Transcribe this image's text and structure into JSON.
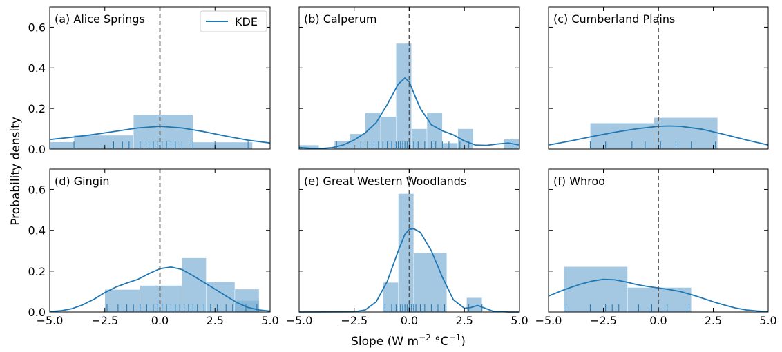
{
  "figure": {
    "xlabel": "Slope (W m",
    "xlabel_sup1": "−2",
    "xlabel_mid": " °C",
    "xlabel_sup2": "−1",
    "xlabel_end": ")",
    "ylabel": "Probability density",
    "legend_label": "KDE"
  },
  "chart_data": [
    {
      "type": "bar",
      "title": "(a) Alice Springs",
      "xlim": [
        -5,
        5
      ],
      "ylim": [
        0,
        0.7
      ],
      "xticks": [
        -5,
        -2.5,
        0,
        2.5,
        5
      ],
      "yticks": [
        0,
        0.2,
        0.4,
        0.6
      ],
      "legend": "top-right",
      "hist_edges": [
        -5.0,
        -3.9,
        -1.2,
        1.5,
        4.2
      ],
      "hist_heights": [
        0.035,
        0.068,
        0.17,
        0.034
      ],
      "kde_x": [
        -5,
        -4,
        -3,
        -2,
        -1,
        0,
        1,
        2,
        3,
        4,
        5
      ],
      "kde_y": [
        0.047,
        0.058,
        0.072,
        0.088,
        0.104,
        0.112,
        0.104,
        0.086,
        0.064,
        0.044,
        0.03
      ],
      "rug": [
        -3.9,
        -2.1,
        -1.7,
        -1.4,
        -0.9,
        -0.5,
        -0.3,
        -0.1,
        0.1,
        0.3,
        0.5,
        0.7,
        1.0,
        1.5,
        2.5,
        4.0
      ],
      "vline": 0
    },
    {
      "type": "bar",
      "title": "(b) Calperum",
      "xlim": [
        -5,
        5
      ],
      "ylim": [
        0,
        0.7
      ],
      "xticks": [
        -5,
        -2.5,
        0,
        2.5,
        5
      ],
      "yticks": [
        0,
        0.2,
        0.4,
        0.6
      ],
      "hist_edges": [
        -5.0,
        -4.1,
        -3.4,
        -2.7,
        -2.0,
        -1.3,
        -0.6,
        0.1,
        0.8,
        1.5,
        2.2,
        2.9,
        3.6,
        4.3,
        5.0
      ],
      "hist_heights": [
        0.02,
        0.0,
        0.04,
        0.075,
        0.18,
        0.16,
        0.52,
        0.1,
        0.18,
        0.03,
        0.1,
        0.0,
        0.0,
        0.05
      ],
      "kde_x": [
        -5,
        -4.5,
        -4,
        -3.5,
        -3,
        -2.5,
        -2,
        -1.5,
        -1,
        -0.5,
        -0.2,
        0,
        0.3,
        0.5,
        1,
        1.5,
        2,
        2.5,
        3,
        3.5,
        4,
        4.5,
        5
      ],
      "kde_y": [
        0.008,
        0.004,
        0.003,
        0.007,
        0.02,
        0.045,
        0.08,
        0.13,
        0.22,
        0.32,
        0.35,
        0.33,
        0.25,
        0.2,
        0.12,
        0.09,
        0.07,
        0.04,
        0.02,
        0.018,
        0.025,
        0.03,
        0.02
      ],
      "rug": [
        -3.3,
        -2.6,
        -2.2,
        -1.9,
        -1.6,
        -1.4,
        -1.2,
        -1.0,
        -0.8,
        -0.6,
        -0.5,
        -0.4,
        -0.3,
        -0.2,
        -0.1,
        0.0,
        0.2,
        0.4,
        0.7,
        1.0,
        1.2,
        1.5,
        1.8,
        2.3,
        2.7,
        4.7
      ],
      "vline": 0
    },
    {
      "type": "bar",
      "title": "(c) Cumberland Plains",
      "xlim": [
        -5,
        5
      ],
      "ylim": [
        0,
        0.7
      ],
      "xticks": [
        -5,
        -2.5,
        0,
        2.5,
        5
      ],
      "yticks": [
        0,
        0.2,
        0.4,
        0.6
      ],
      "hist_edges": [
        -3.1,
        -0.2,
        2.7
      ],
      "hist_heights": [
        0.128,
        0.155
      ],
      "kde_x": [
        -5,
        -4,
        -3,
        -2,
        -1,
        0,
        0.5,
        1,
        2,
        3,
        4,
        5
      ],
      "kde_y": [
        0.02,
        0.04,
        0.062,
        0.083,
        0.1,
        0.112,
        0.114,
        0.112,
        0.098,
        0.072,
        0.045,
        0.02
      ],
      "rug": [
        -3.1,
        -2.4,
        -1.2,
        -0.6,
        0.1,
        0.8,
        1.5,
        2.6
      ],
      "vline": 0
    },
    {
      "type": "bar",
      "title": "(d) Gingin",
      "xlim": [
        -5,
        5
      ],
      "ylim": [
        0,
        0.7
      ],
      "xticks": [
        -5,
        -2.5,
        0,
        2.5,
        5
      ],
      "yticks": [
        0,
        0.2,
        0.4,
        0.6
      ],
      "hist_edges": [
        -2.5,
        -0.9,
        1.0,
        2.1,
        3.4,
        4.5
      ],
      "hist_heights": [
        0.11,
        0.13,
        0.265,
        0.148,
        0.112
      ],
      "extra_bar": {
        "x0": 3.4,
        "x1": 4.5,
        "h": 0.055
      },
      "kde_x": [
        -5,
        -4.5,
        -4,
        -3.5,
        -3,
        -2.5,
        -2,
        -1.5,
        -1,
        -0.5,
        0,
        0.5,
        1,
        1.5,
        2,
        2.5,
        3,
        3.5,
        4,
        4.5,
        5
      ],
      "kde_y": [
        0.002,
        0.006,
        0.016,
        0.035,
        0.062,
        0.095,
        0.122,
        0.142,
        0.16,
        0.188,
        0.212,
        0.22,
        0.208,
        0.178,
        0.145,
        0.112,
        0.078,
        0.046,
        0.022,
        0.01,
        0.004
      ],
      "rug": [
        -2.4,
        -1.9,
        -1.5,
        -1.2,
        -0.9,
        -0.6,
        -0.3,
        -0.1,
        0.1,
        0.3,
        0.5,
        0.7,
        0.9,
        1.1,
        1.3,
        1.5,
        1.7,
        2.0,
        2.3,
        2.6,
        3.0,
        3.3,
        3.9,
        4.4
      ],
      "vline": 0
    },
    {
      "type": "bar",
      "title": "(e) Great Western Woodlands",
      "xlim": [
        -5,
        5
      ],
      "ylim": [
        0,
        0.7
      ],
      "xticks": [
        -5,
        -2.5,
        0,
        2.5,
        5
      ],
      "yticks": [
        0,
        0.2,
        0.4,
        0.6
      ],
      "hist_edges": [
        -1.2,
        -0.5,
        0.2,
        1.7,
        2.6,
        3.3
      ],
      "hist_heights": [
        0.145,
        0.58,
        0.29,
        0.0,
        0.07
      ],
      "kde_x": [
        -5,
        -2.5,
        -2,
        -1.5,
        -1,
        -0.5,
        -0.2,
        0,
        0.2,
        0.5,
        1,
        1.5,
        2,
        2.5,
        2.8,
        3.1,
        3.4,
        3.8,
        4.5,
        5
      ],
      "kde_y": [
        0,
        0.001,
        0.01,
        0.05,
        0.15,
        0.3,
        0.38,
        0.405,
        0.408,
        0.39,
        0.3,
        0.17,
        0.06,
        0.018,
        0.022,
        0.032,
        0.02,
        0.004,
        0,
        0
      ],
      "rug": [
        -1.1,
        -0.8,
        -0.6,
        -0.4,
        -0.3,
        -0.2,
        -0.1,
        0.0,
        0.1,
        0.2,
        0.3,
        0.5,
        0.7,
        1.0,
        1.3,
        1.6,
        2.7,
        3.3
      ],
      "vline": 0
    },
    {
      "type": "bar",
      "title": "(f) Whroo",
      "xlim": [
        -5,
        5
      ],
      "ylim": [
        0,
        0.7
      ],
      "xticks": [
        -5,
        -2.5,
        0,
        2.5,
        5
      ],
      "yticks": [
        0,
        0.2,
        0.4,
        0.6
      ],
      "hist_edges": [
        -4.3,
        -1.4,
        1.5
      ],
      "hist_heights": [
        0.222,
        0.12
      ],
      "kde_x": [
        -5,
        -4.5,
        -4,
        -3.5,
        -3,
        -2.5,
        -2,
        -1.5,
        -1,
        -0.5,
        0,
        0.5,
        1,
        1.5,
        2,
        2.5,
        3,
        3.5,
        4,
        4.5,
        5
      ],
      "kde_y": [
        0.078,
        0.1,
        0.12,
        0.138,
        0.152,
        0.16,
        0.158,
        0.148,
        0.135,
        0.125,
        0.118,
        0.11,
        0.1,
        0.085,
        0.068,
        0.05,
        0.034,
        0.02,
        0.01,
        0.005,
        0.002
      ],
      "rug": [
        -4.2,
        -3.1,
        -2.4,
        -2.1,
        -1.8,
        -0.9,
        -0.3,
        0.4,
        1.4
      ],
      "vline": 0
    }
  ],
  "colors": {
    "hist": "#7fb0d5",
    "kde": "#1f77b4",
    "rug": "#1f77b4",
    "vline": "#555555"
  }
}
